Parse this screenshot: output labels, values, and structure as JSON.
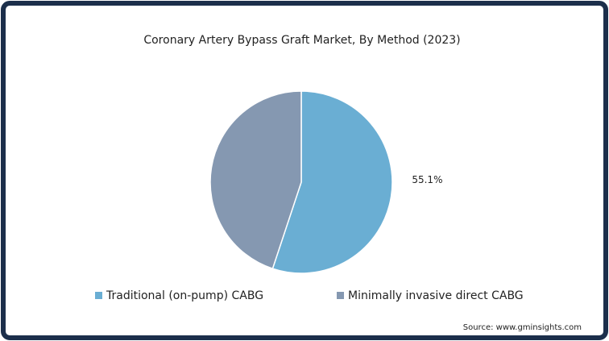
{
  "chart_data": {
    "type": "pie",
    "title": "Coronary Artery Bypass Graft Market, By Method (2023)",
    "categories": [
      "Traditional (on-pump) CABG",
      "Minimally invasive direct CABG"
    ],
    "values": [
      55.1,
      44.9
    ],
    "value_labels": [
      "55.1%",
      null
    ],
    "colors": [
      "#6aaed3",
      "#8598b1"
    ],
    "legend": "bottom",
    "source": "Source: www.gminsights.com"
  }
}
